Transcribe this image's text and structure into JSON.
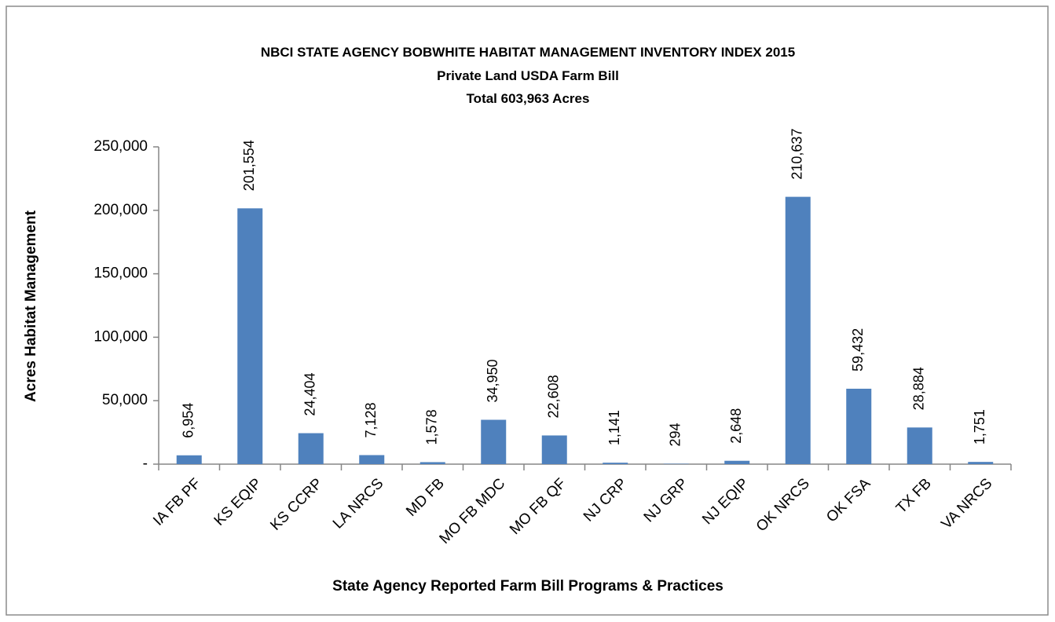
{
  "chart_data": {
    "type": "bar",
    "title": "NBCI STATE AGENCY BOBWHITE HABITAT MANAGEMENT INVENTORY INDEX 2015",
    "subtitle": "Private Land USDA Farm Bill",
    "total": "Total 603,963 Acres",
    "x_label": "State Agency Reported Farm Bill Programs & Practices",
    "y_label": "Acres Habitat  Management",
    "categories": [
      "IA FB PF",
      "KS EQIP",
      "KS CCRP",
      "LA NRCS",
      "MD FB",
      "MO FB MDC",
      "MO FB QF",
      "NJ CRP",
      "NJ GRP",
      "NJ EQIP",
      "OK NRCS",
      "OK FSA",
      "TX FB",
      "VA NRCS"
    ],
    "values": [
      6954,
      201554,
      24404,
      7128,
      1578,
      34950,
      22608,
      1141,
      294,
      2648,
      210637,
      59432,
      28884,
      1751
    ],
    "value_labels": [
      "6,954",
      "201,554",
      "24,404",
      "7,128",
      "1,578",
      "34,950",
      "22,608",
      "1,141",
      "294",
      "2,648",
      "210,637",
      "59,432",
      "28,884",
      "1,751"
    ],
    "color": "#4f81bd",
    "ylim": [
      0,
      250000
    ],
    "yticks": [
      {
        "value": 0,
        "label": "-"
      },
      {
        "value": 50000,
        "label": "50,000"
      },
      {
        "value": 100000,
        "label": "100,000"
      },
      {
        "value": 150000,
        "label": "150,000"
      },
      {
        "value": 200000,
        "label": "200,000"
      },
      {
        "value": 250000,
        "label": "250,000"
      }
    ],
    "grid": false
  }
}
